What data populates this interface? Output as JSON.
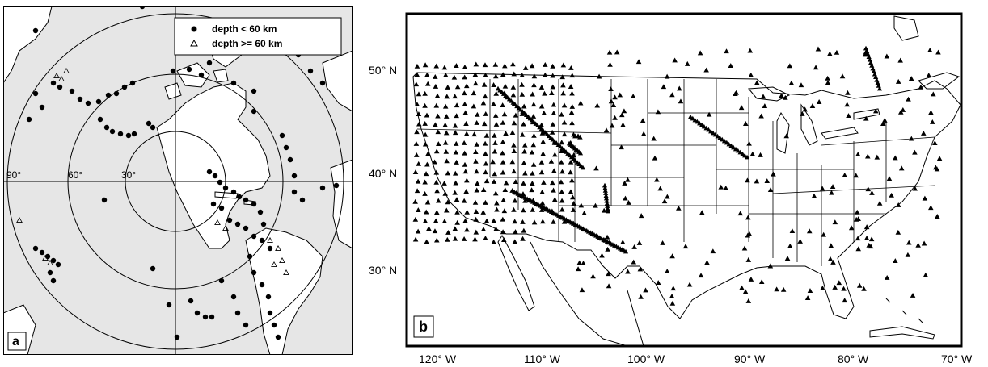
{
  "panel_a": {
    "panel_label": "a",
    "legend": {
      "items": [
        {
          "marker": "filled-circle",
          "label": "depth < 60 km"
        },
        {
          "marker": "open-triangle",
          "label": "depth >= 60 km"
        }
      ]
    },
    "distance_rings": [
      "90°",
      "60°",
      "30°"
    ],
    "events": {
      "shallow_count_note": "",
      "shallow": [],
      "deep": []
    },
    "colors": {
      "ocean": "#e6e6e6",
      "land": "#ffffff",
      "line": "#000000"
    }
  },
  "panel_b": {
    "panel_label": "b",
    "lat_labels": [
      "50° N",
      "40° N",
      "30° N"
    ],
    "lon_labels": [
      "120° W",
      "110° W",
      "100° W",
      "90° W",
      "80° W",
      "70° W"
    ],
    "colors": {
      "ocean": "#ffffff",
      "land": "#ffffff",
      "line": "#000000"
    }
  }
}
